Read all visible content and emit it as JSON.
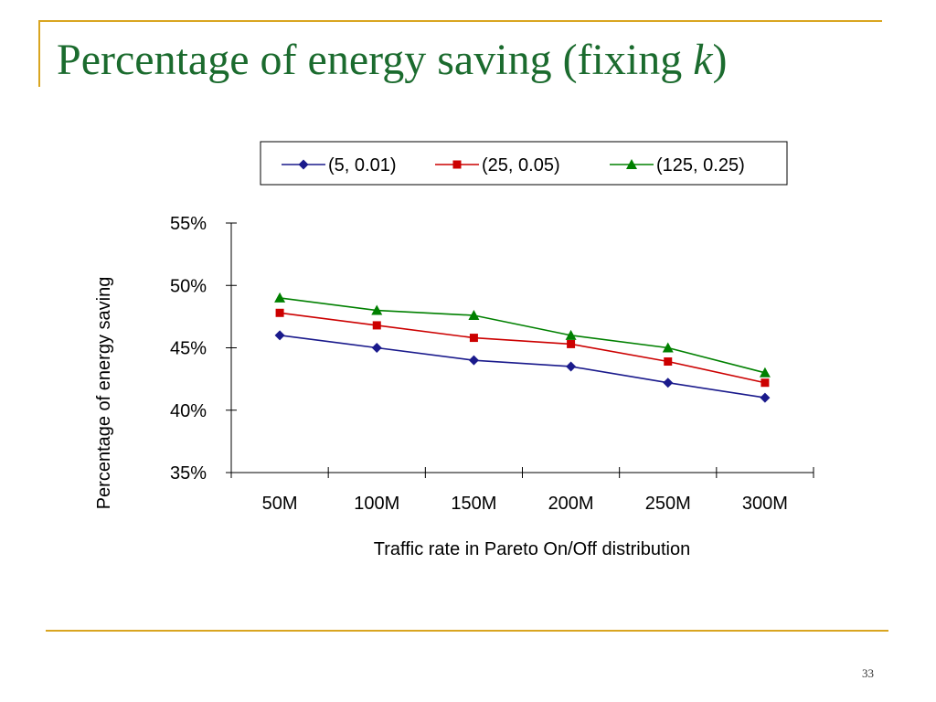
{
  "slide": {
    "title_main": "Percentage of energy saving (fixing ",
    "title_italic": "k",
    "title_close": ")",
    "page_number": "33"
  },
  "colors": {
    "accent_rule": "#D9A520",
    "title": "#1B6B2E"
  },
  "chart_data": {
    "type": "line",
    "categories": [
      "50M",
      "100M",
      "150M",
      "200M",
      "250M",
      "300M"
    ],
    "series": [
      {
        "name": "(5, 0.01)",
        "values": [
          46.0,
          45.0,
          44.0,
          43.5,
          42.2,
          41.0
        ],
        "color": "#1A1A8C",
        "marker": "diamond"
      },
      {
        "name": "(25, 0.05)",
        "values": [
          47.8,
          46.8,
          45.8,
          45.3,
          43.9,
          42.2
        ],
        "color": "#CC0000",
        "marker": "square"
      },
      {
        "name": "(125, 0.25)",
        "values": [
          49.0,
          48.0,
          47.6,
          46.0,
          45.0,
          43.0
        ],
        "color": "#008000",
        "marker": "triangle"
      }
    ],
    "xlabel": "Traffic rate in Pareto On/Off distribution",
    "ylabel": "Percentage of energy saving",
    "ylim": [
      35,
      55
    ],
    "yticks": [
      35,
      40,
      45,
      50,
      55
    ],
    "ytick_labels": [
      "35%",
      "40%",
      "45%",
      "50%",
      "55%"
    ],
    "legend_position": "top",
    "grid": false
  }
}
